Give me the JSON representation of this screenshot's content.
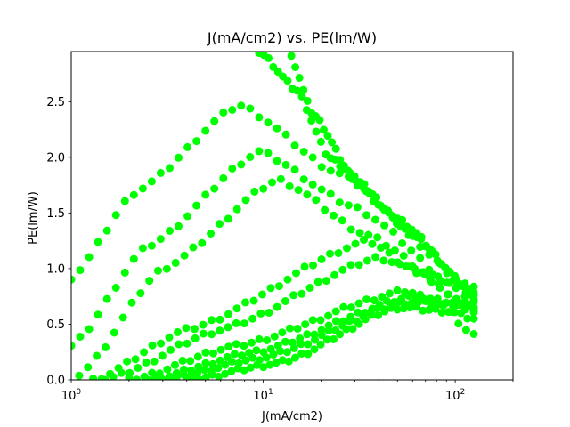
{
  "chart_data": {
    "type": "scatter",
    "title": "J(mA/cm2) vs. PE(lm/W)",
    "xlabel": "J(mA/cm2)",
    "ylabel": "PE(lm/W)",
    "xscale": "log",
    "xlim": [
      1,
      200
    ],
    "ylim": [
      0,
      2.95
    ],
    "x_ticks": [
      {
        "value": 1,
        "base": "10",
        "exp": "0"
      },
      {
        "value": 10,
        "base": "10",
        "exp": "1"
      },
      {
        "value": 100,
        "base": "10",
        "exp": "2"
      }
    ],
    "y_ticks": [
      {
        "value": 0.0,
        "label": "0.0"
      },
      {
        "value": 0.5,
        "label": "0.5"
      },
      {
        "value": 1.0,
        "label": "1.0"
      },
      {
        "value": 1.5,
        "label": "1.5"
      },
      {
        "value": 2.0,
        "label": "2.0"
      },
      {
        "value": 2.5,
        "label": "2.5"
      }
    ],
    "marker_color": "#00ff00",
    "grid": false,
    "legend": "none",
    "series_curves": [
      {
        "x0": 1.0,
        "y0": 0.92,
        "x1": 2.2,
        "ypk": 1.7,
        "xpk": 7.5,
        "y2": 2.47,
        "x3": 25,
        "y3": 1.85,
        "x4": 125,
        "y4": 0.82
      },
      {
        "x0": 1.0,
        "y0": 0.3,
        "x1": 2.5,
        "ypk": 1.2,
        "xpk": 9.5,
        "y2": 2.05,
        "x3": 30,
        "y3": 1.55,
        "x4": 125,
        "y4": 0.72
      },
      {
        "x0": 1.1,
        "y0": 0.05,
        "x1": 3.0,
        "ypk": 1.0,
        "xpk": 12.0,
        "y2": 1.8,
        "x3": 35,
        "y3": 1.3,
        "x4": 125,
        "y4": 0.65
      },
      {
        "x0": 1.3,
        "y0": 0.0,
        "x1": 4.0,
        "ypk": 0.45,
        "xpk": 35.0,
        "y2": 1.25,
        "x3": 60,
        "y3": 1.0,
        "x4": 125,
        "y4": 0.6
      },
      {
        "x0": 1.5,
        "y0": 0.0,
        "x1": 6.0,
        "ypk": 0.45,
        "xpk": 40.0,
        "y2": 1.1,
        "x3": 70,
        "y3": 0.95,
        "x4": 125,
        "y4": 0.8
      },
      {
        "x0": 2.0,
        "y0": 0.0,
        "x1": 7.0,
        "ypk": 0.3,
        "xpk": 55.0,
        "y2": 0.8,
        "x3": 80,
        "y3": 0.7,
        "x4": 125,
        "y4": 0.4
      },
      {
        "x0": 2.5,
        "y0": 0.0,
        "x1": 9.0,
        "ypk": 0.25,
        "xpk": 60.0,
        "y2": 0.75,
        "x3": 90,
        "y3": 0.7,
        "x4": 125,
        "y4": 0.66
      },
      {
        "x0": 3.0,
        "y0": 0.0,
        "x1": 10.0,
        "ypk": 0.2,
        "xpk": 55.0,
        "y2": 0.7,
        "x3": 90,
        "y3": 0.68,
        "x4": 125,
        "y4": 0.68
      },
      {
        "x0": 4.0,
        "y0": 0.0,
        "x1": 12.0,
        "ypk": 0.15,
        "xpk": 50.0,
        "y2": 0.65,
        "x3": 90,
        "y3": 0.62,
        "x4": 125,
        "y4": 0.55
      },
      {
        "x0": 9.5,
        "y0": 2.95,
        "x1": 15.0,
        "ypk": 2.6,
        "xpk": 22.0,
        "y2": 2.0,
        "x3": 50,
        "y3": 1.45,
        "x4": 125,
        "y4": 0.78
      },
      {
        "x0": 14.0,
        "y0": 2.9,
        "x1": 18.0,
        "ypk": 2.4,
        "xpk": 30.0,
        "y2": 1.8,
        "x3": 60,
        "y3": 1.3,
        "x4": 125,
        "y4": 0.75
      }
    ]
  }
}
